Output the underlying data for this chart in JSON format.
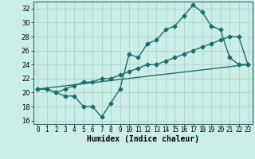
{
  "xlabel": "Humidex (Indice chaleur)",
  "background_color": "#cceee8",
  "grid_color": "#aacccc",
  "line_color": "#1a6e6a",
  "xlim": [
    -0.5,
    23.5
  ],
  "ylim": [
    15.5,
    33.0
  ],
  "xticks": [
    0,
    1,
    2,
    3,
    4,
    5,
    6,
    7,
    8,
    9,
    10,
    11,
    12,
    13,
    14,
    15,
    16,
    17,
    18,
    19,
    20,
    21,
    22,
    23
  ],
  "yticks": [
    16,
    18,
    20,
    22,
    24,
    26,
    28,
    30,
    32
  ],
  "series1_x": [
    0,
    1,
    2,
    3,
    4,
    5,
    6,
    7,
    8,
    9,
    10,
    11,
    12,
    13,
    14,
    15,
    16,
    17,
    18,
    19,
    20,
    21,
    22,
    23
  ],
  "series1_y": [
    20.5,
    20.5,
    20.0,
    19.5,
    19.5,
    18.0,
    18.0,
    16.5,
    18.5,
    20.5,
    25.5,
    25.0,
    27.0,
    27.5,
    29.0,
    29.5,
    31.0,
    32.5,
    31.5,
    29.5,
    29.0,
    25.0,
    24.0,
    24.0
  ],
  "series2_x": [
    0,
    1,
    2,
    3,
    4,
    5,
    6,
    7,
    8,
    9,
    10,
    11,
    12,
    13,
    14,
    15,
    16,
    17,
    18,
    19,
    20,
    21,
    22,
    23
  ],
  "series2_y": [
    20.5,
    20.5,
    20.0,
    20.5,
    21.0,
    21.5,
    21.5,
    22.0,
    22.0,
    22.5,
    23.0,
    23.5,
    24.0,
    24.0,
    24.5,
    25.0,
    25.5,
    26.0,
    26.5,
    27.0,
    27.5,
    28.0,
    28.0,
    24.0
  ],
  "series3_x": [
    0,
    23
  ],
  "series3_y": [
    20.5,
    24.0
  ],
  "xlabel_fontsize": 7,
  "tick_fontsize": 5.5,
  "linewidth": 1.0,
  "markersize": 2.5
}
